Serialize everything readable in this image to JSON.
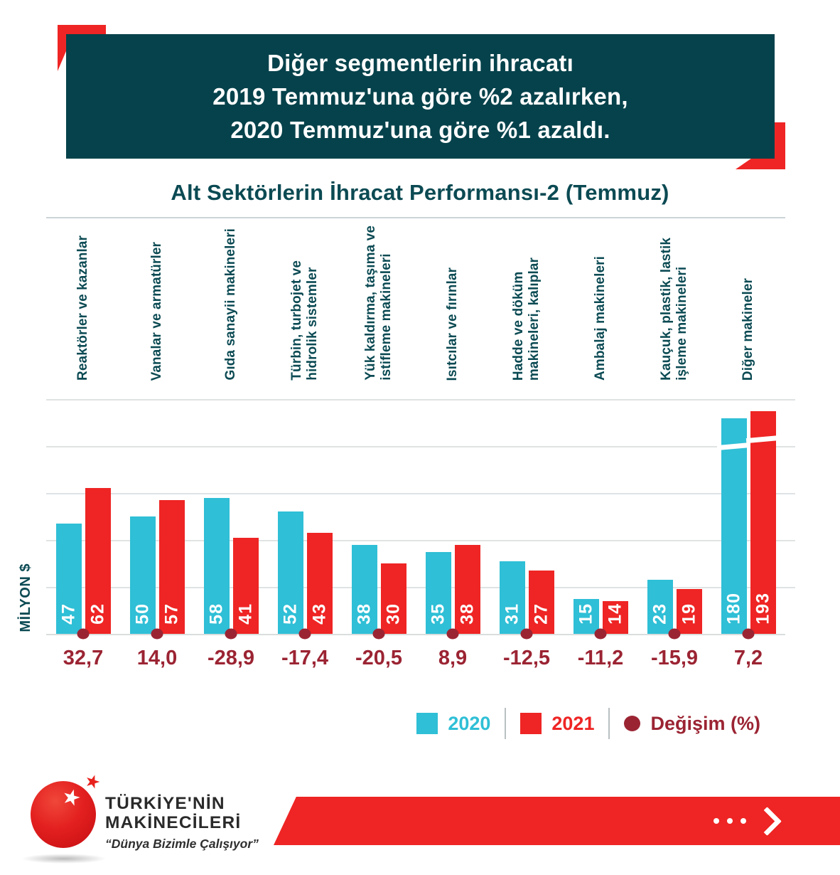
{
  "banner": {
    "lines": [
      "Diğer segmentlerin ihracatı",
      "2019 Temmuz'una göre %2 azalırken,",
      "2020 Temmuz'una göre %1 azaldı."
    ],
    "bg_color": "#06424b",
    "accent_color": "#ee2524"
  },
  "chart_data": {
    "type": "bar",
    "title": "Alt Sektörlerin İhracat Performansı-2 (Temmuz)",
    "ylabel": "MİLYON $",
    "ylim": [
      0,
      100
    ],
    "gridline_step": 20,
    "grid": true,
    "axis_break_on_last_group": true,
    "legend_position": "bottom-right",
    "categories": [
      "Reaktörler ve kazanlar",
      "Vanalar ve armatürler",
      "Gıda sanayii makineleri",
      "Türbin, turbojet ve\nhidrolik sistemler",
      "Yük kaldırma, taşıma ve\nistifleme makineleri",
      "Isıtcılar ve fırınlar",
      "Hadde ve döküm\nmakineleri, kalıplar",
      "Ambalaj makineleri",
      "Kauçuk, plastik, lastik\nişleme makineleri",
      "Diğer makineler"
    ],
    "series": [
      {
        "name": "2020",
        "color": "#2fbfd6",
        "values": [
          47,
          50,
          58,
          52,
          38,
          35,
          31,
          15,
          23,
          180
        ]
      },
      {
        "name": "2021",
        "color": "#ee2524",
        "values": [
          62,
          57,
          41,
          43,
          30,
          38,
          27,
          14,
          19,
          193
        ]
      }
    ],
    "changes": {
      "label": "Değişim (%)",
      "color": "#9b2433",
      "values": [
        "32,7",
        "14,0",
        "-28,9",
        "-17,4",
        "-20,5",
        "8,9",
        "-12,5",
        "-11,2",
        "-15,9",
        "7,2"
      ]
    }
  },
  "footer": {
    "brand_line1": "TÜRKİYE'NİN",
    "brand_line2": "MAKİNECİLERİ",
    "tagline": "“Dünya Bizimle Çalışıyor”"
  }
}
